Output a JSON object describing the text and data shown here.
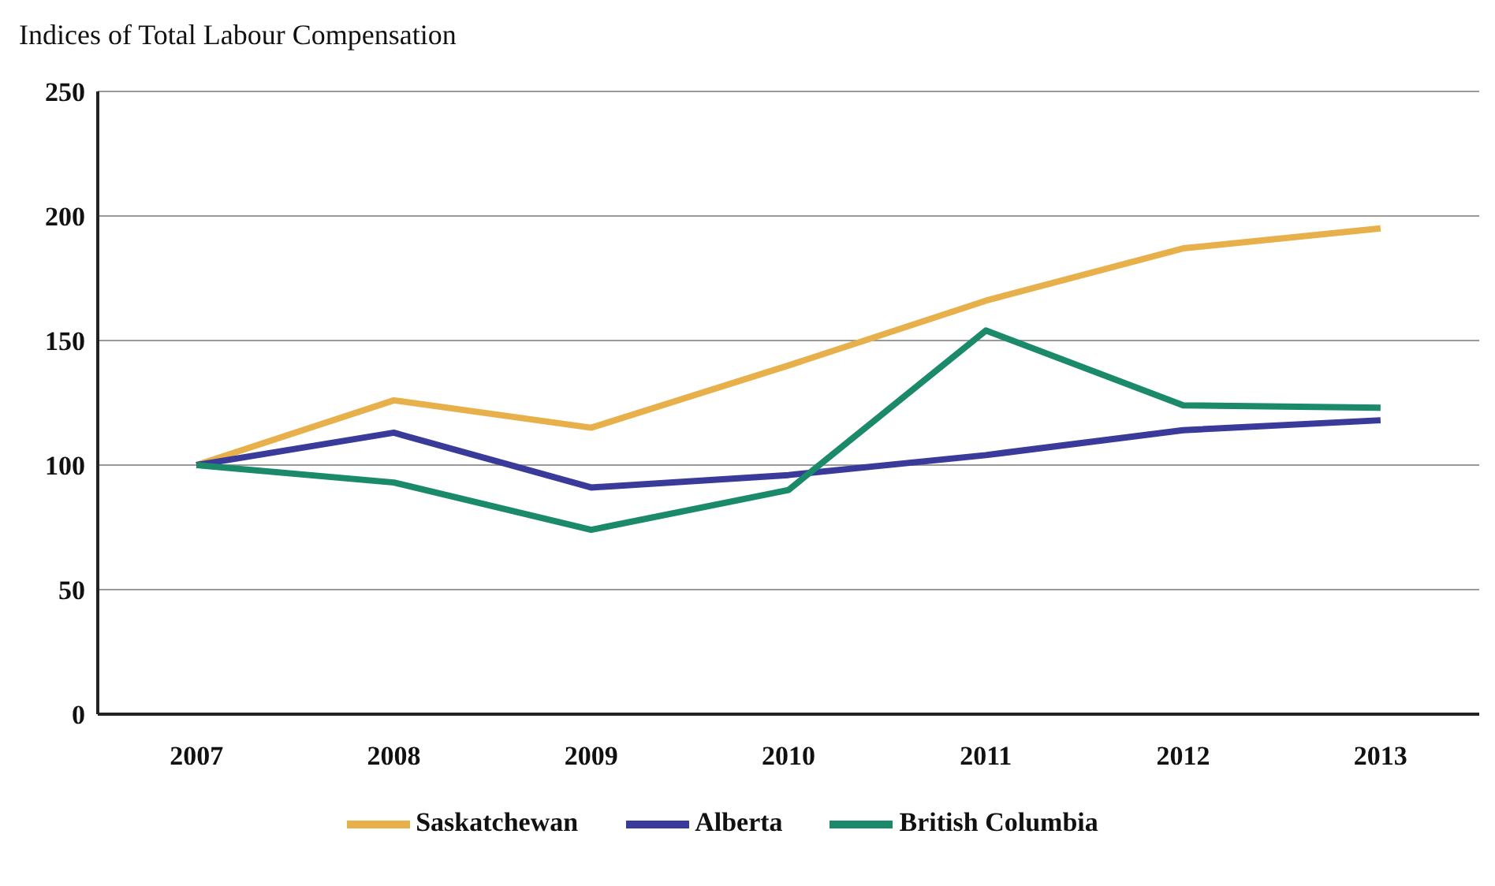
{
  "chart_data": {
    "type": "line",
    "title": "Indices of Total Labour Compensation",
    "categories": [
      "2007",
      "2008",
      "2009",
      "2010",
      "2011",
      "2012",
      "2013"
    ],
    "series": [
      {
        "name": "Saskatchewan",
        "color": "#e8b04a",
        "values": [
          100,
          126,
          115,
          140,
          166,
          187,
          195
        ]
      },
      {
        "name": "Alberta",
        "color": "#3a3a9a",
        "values": [
          100,
          113,
          91,
          96,
          104,
          114,
          118
        ]
      },
      {
        "name": "British Columbia",
        "color": "#1a8a6a",
        "values": [
          100,
          93,
          74,
          90,
          154,
          124,
          123
        ]
      }
    ],
    "ylim": [
      0,
      250
    ],
    "yticks": [
      0,
      50,
      100,
      150,
      200,
      250
    ],
    "grid": "y",
    "legend": "bottom",
    "marker": "none",
    "line_style": "solid"
  }
}
